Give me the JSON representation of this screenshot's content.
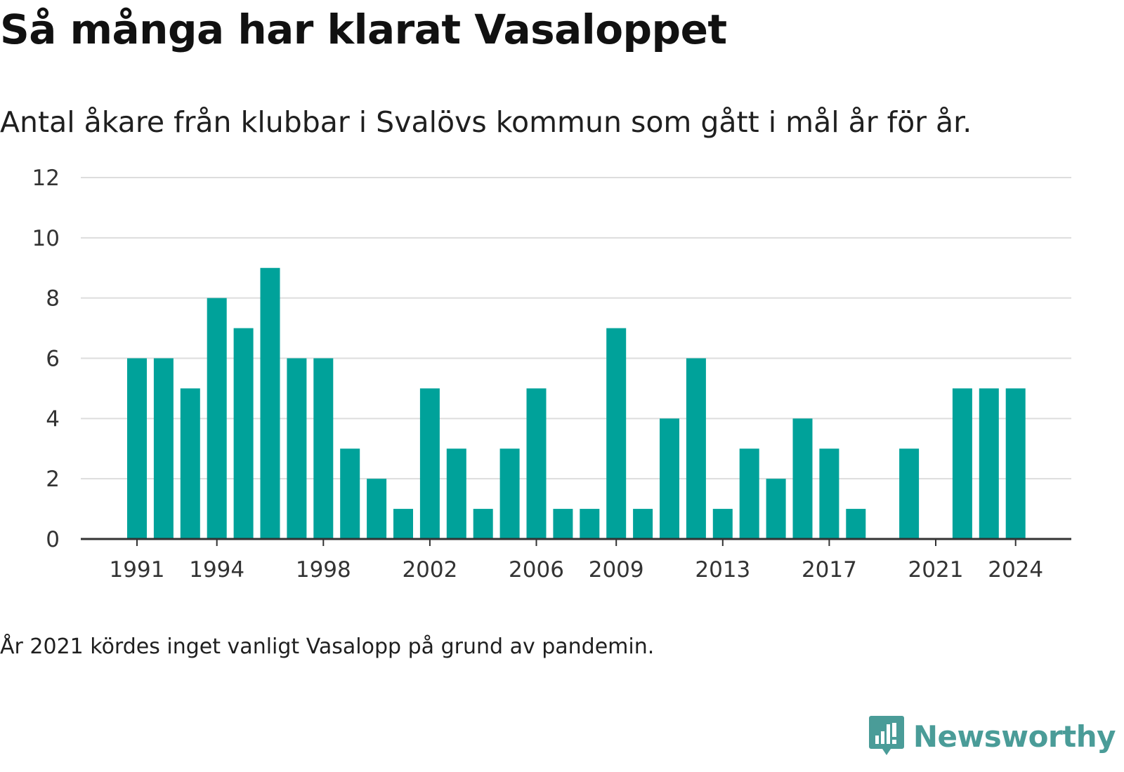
{
  "title": "Så många har klarat Vasaloppet",
  "subtitle": "Antal åkare från klubbar i Svalövs kommun som gått i mål år för år.",
  "note": "År 2021 kördes inget vanligt Vasalopp på grund av pandemin.",
  "brand": {
    "name": "Newsworthy",
    "icon": "newsworthy-logo-icon",
    "color": "#4a9c98"
  },
  "colors": {
    "bar": "#00a29a",
    "grid": "#dddddd",
    "axis": "#333333"
  },
  "chart_data": {
    "type": "bar",
    "categories": [
      "1991",
      "1992",
      "1993",
      "1994",
      "1995",
      "1996",
      "1997",
      "1998",
      "1999",
      "2000",
      "2001",
      "2002",
      "2003",
      "2004",
      "2005",
      "2006",
      "2007",
      "2008",
      "2009",
      "2010",
      "2011",
      "2012",
      "2013",
      "2014",
      "2015",
      "2016",
      "2017",
      "2018",
      "2019",
      "2020",
      "2021",
      "2022",
      "2023",
      "2024"
    ],
    "values": [
      6,
      6,
      5,
      8,
      7,
      9,
      6,
      6,
      3,
      2,
      1,
      5,
      3,
      1,
      3,
      5,
      1,
      1,
      7,
      1,
      4,
      6,
      1,
      3,
      2,
      4,
      3,
      1,
      0,
      3,
      0,
      5,
      5,
      5
    ],
    "xticks": [
      "1991",
      "1994",
      "1998",
      "2002",
      "2006",
      "2009",
      "2013",
      "2017",
      "2021",
      "2024"
    ],
    "yticks": [
      0,
      2,
      4,
      6,
      8,
      10,
      12
    ],
    "ylim": [
      0,
      12
    ],
    "grid": true
  }
}
